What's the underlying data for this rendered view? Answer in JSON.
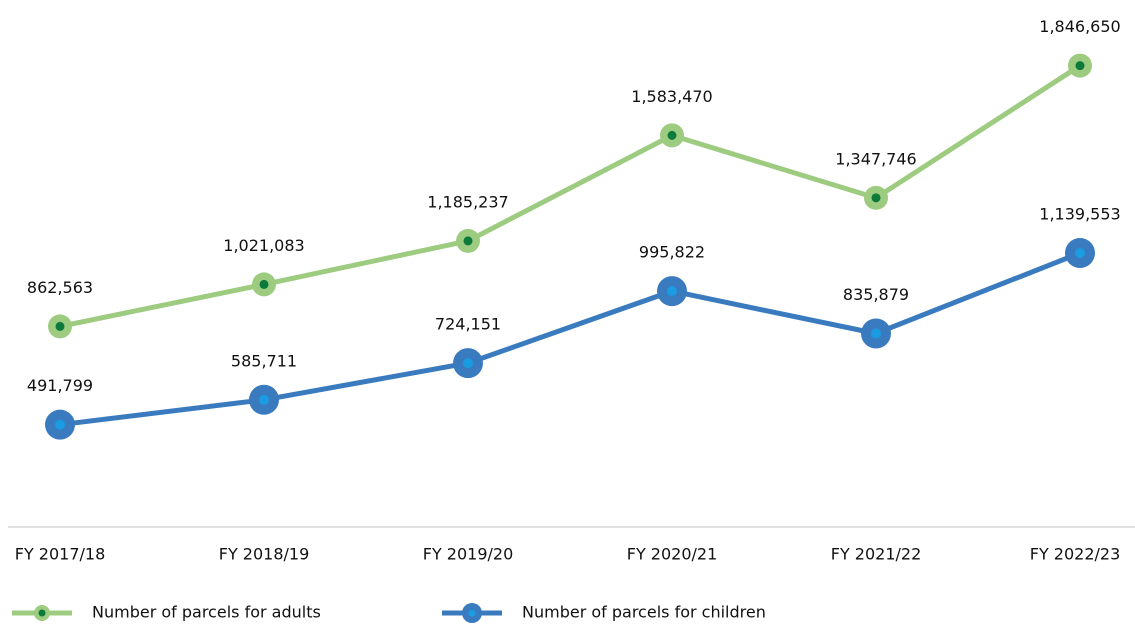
{
  "chart_data": {
    "type": "line",
    "categories": [
      "FY 2017/18",
      "FY 2018/19",
      "FY 2019/20",
      "FY 2020/21",
      "FY 2021/22",
      "FY 2022/23"
    ],
    "series": [
      {
        "name": "Number of parcels for adults",
        "color": "#9dcb80",
        "marker_color": "#0b7a3b",
        "values": [
          862563,
          1021083,
          1185237,
          1583470,
          1347746,
          1846650
        ],
        "value_labels": [
          "862,563",
          "1,021,083",
          "1,185,237",
          "1,583,470",
          "1,347,746",
          "1,846,650"
        ]
      },
      {
        "name": "Number of parcels for children",
        "color": "#3a7bbf",
        "marker_color": "#1a9be2",
        "values": [
          491799,
          585711,
          724151,
          995822,
          835879,
          1139553
        ],
        "value_labels": [
          "491,799",
          "585,711",
          "724,151",
          "995,822",
          "835,879",
          "1,139,553"
        ]
      }
    ],
    "ylim": [
      0,
      2000000
    ]
  }
}
